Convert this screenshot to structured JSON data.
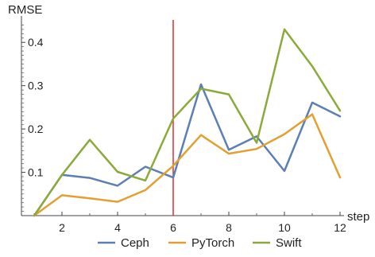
{
  "chart_data": {
    "type": "line",
    "title": "",
    "xlabel": "step",
    "ylabel": "RMSE",
    "x": [
      1,
      2,
      3,
      4,
      5,
      6,
      7,
      8,
      9,
      10,
      11,
      12
    ],
    "xlim": [
      1,
      12
    ],
    "ylim": [
      0,
      0.45
    ],
    "xticks": [
      2,
      4,
      6,
      8,
      10,
      12
    ],
    "yticks": [
      0.1,
      0.2,
      0.3,
      0.4
    ],
    "xtick_labels": [
      "2",
      "4",
      "6",
      "8",
      "10",
      "12"
    ],
    "ytick_labels": [
      "0.1",
      "0.2",
      "0.3",
      "0.4"
    ],
    "grid": false,
    "legend_position": "bottom",
    "series": [
      {
        "name": "Ceph",
        "color": "#5b7fb4",
        "values": [
          0.0,
          0.094,
          0.087,
          0.069,
          0.113,
          0.088,
          0.303,
          0.152,
          0.183,
          0.103,
          0.261,
          0.229
        ]
      },
      {
        "name": "PyTorch",
        "color": "#e3a030",
        "values": [
          0.0,
          0.047,
          0.04,
          0.032,
          0.059,
          0.115,
          0.186,
          0.143,
          0.154,
          0.188,
          0.234,
          0.088
        ]
      },
      {
        "name": "Swift",
        "color": "#8aab3a",
        "values": [
          0.0,
          0.094,
          0.175,
          0.101,
          0.081,
          0.224,
          0.293,
          0.28,
          0.168,
          0.43,
          0.345,
          0.242
        ]
      }
    ],
    "reference_line": {
      "x": 6,
      "color": "#e03030"
    }
  }
}
